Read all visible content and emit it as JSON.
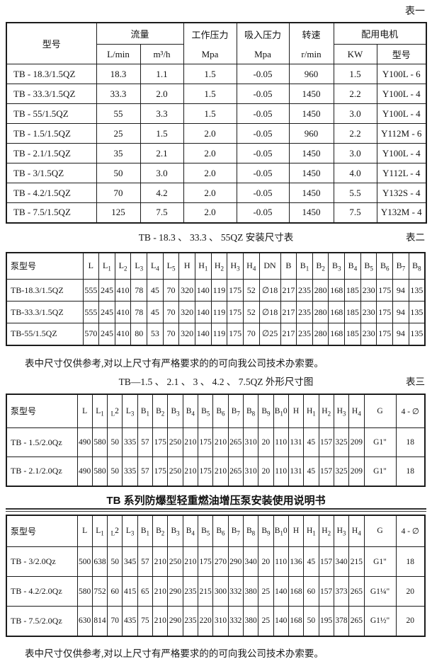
{
  "colors": {
    "ink": "#1c1c1c",
    "background": "#ffffff"
  },
  "page": {
    "label_table1": "表一",
    "label_table2": "表二",
    "label_table3": "表三",
    "caption_table2": "TB - 18.3 、 33.3 、 55QZ 安装尺寸表",
    "caption_table3": "TB—1.5 、 2.1 、 3 、 4.2 、 7.5QZ 外形尺寸图",
    "note_table2": "表中尺寸仅供参考,对以上尺寸有严格要求的的可向我公司技术办索要。",
    "manual_heading": "TB 系列防爆型轻重燃油增压泵安装使用说明书",
    "note_table4": "表中尺寸仅供参考,对以上尺寸有严格要求的的可向我公司技术办索要。"
  },
  "spec_table": {
    "header": {
      "model": "型号",
      "flow": "流量",
      "flow_lmin": "L/min",
      "flow_m3h": "m³/h",
      "work_pressure": "工作压力",
      "work_pressure_unit": "Mpa",
      "suction_pressure": "吸入压力",
      "suction_pressure_unit": "Mpa",
      "speed": "转速",
      "speed_unit": "r/min",
      "motor": "配用电机",
      "motor_kw": "KW",
      "motor_model": "型号"
    },
    "rows": [
      [
        "TB - 18.3/1.5QZ",
        "18.3",
        "1.1",
        "1.5",
        "-0.05",
        "960",
        "1.5",
        "Y100L - 6"
      ],
      [
        "TB - 33.3/1.5QZ",
        "33.3",
        "2.0",
        "1.5",
        "-0.05",
        "1450",
        "2.2",
        "Y100L - 4"
      ],
      [
        "TB - 55/1.5QZ",
        "55",
        "3.3",
        "1.5",
        "-0.05",
        "1450",
        "3.0",
        "Y100L - 4"
      ],
      [
        "TB - 1.5/1.5QZ",
        "25",
        "1.5",
        "2.0",
        "-0.05",
        "960",
        "2.2",
        "Y112M - 6"
      ],
      [
        "TB - 2.1/1.5QZ",
        "35",
        "2.1",
        "2.0",
        "-0.05",
        "1450",
        "3.0",
        "Y100L - 4"
      ],
      [
        "TB - 3/1.5QZ",
        "50",
        "3.0",
        "2.0",
        "-0.05",
        "1450",
        "4.0",
        "Y112L - 4"
      ],
      [
        "TB - 4.2/1.5QZ",
        "70",
        "4.2",
        "2.0",
        "-0.05",
        "1450",
        "5.5",
        "Y132S - 4"
      ],
      [
        "TB - 7.5/1.5QZ",
        "125",
        "7.5",
        "2.0",
        "-0.05",
        "1450",
        "7.5",
        "Y132M - 4"
      ]
    ]
  },
  "install_table": {
    "columns": [
      "泵型号",
      "L",
      "L_{1}",
      "L_{2}",
      "L_{3}",
      "L_{4}",
      "L_{5}",
      "H",
      "H_{1}",
      "H_{2}",
      "H_{3}",
      "H_{4}",
      "DN",
      "B",
      "B_{1}",
      "B_{2}",
      "B_{3}",
      "B_{4}",
      "B_{5}",
      "B_{6}",
      "B_{7}",
      "B_{8}"
    ],
    "rows": [
      [
        "TB-18.3/1.5QZ",
        "555",
        "245",
        "410",
        "78",
        "45",
        "70",
        "320",
        "140",
        "119",
        "175",
        "52",
        "∅18",
        "217",
        "235",
        "280",
        "168",
        "185",
        "230",
        "175",
        "94",
        "135"
      ],
      [
        "TB-33.3/1.5QZ",
        "555",
        "245",
        "410",
        "78",
        "45",
        "70",
        "320",
        "140",
        "119",
        "175",
        "52",
        "∅18",
        "217",
        "235",
        "280",
        "168",
        "185",
        "230",
        "175",
        "94",
        "135"
      ],
      [
        "TB-55/1.5QZ",
        "570",
        "245",
        "410",
        "80",
        "53",
        "70",
        "320",
        "140",
        "119",
        "175",
        "70",
        "∅25",
        "217",
        "235",
        "280",
        "168",
        "185",
        "230",
        "175",
        "94",
        "135"
      ]
    ]
  },
  "outline_table": {
    "columns": [
      "泵型号",
      "L",
      "L_{1}",
      "_{L}2",
      "L_{3}",
      "B_{1}",
      "B_{2}",
      "B_{3}",
      "B_{4}",
      "B_{5}",
      "B_{6}",
      "B_{7}",
      "B_{8}",
      "B_{9}",
      "B_{1}0",
      "H",
      "H_{1}",
      "H_{2}",
      "H_{3}",
      "H_{4}",
      "G",
      "4 - ∅"
    ],
    "rows": [
      [
        "TB - 1.5/2.0Qz",
        "490",
        "580",
        "50",
        "335",
        "57",
        "175",
        "250",
        "210",
        "175",
        "210",
        "265",
        "310",
        "20",
        "110",
        "131",
        "45",
        "157",
        "325",
        "209",
        "G1\"",
        "18"
      ],
      [
        "TB - 2.1/2.0Qz",
        "490",
        "580",
        "50",
        "335",
        "57",
        "175",
        "250",
        "210",
        "175",
        "210",
        "265",
        "310",
        "20",
        "110",
        "131",
        "45",
        "157",
        "325",
        "209",
        "G1\"",
        "18"
      ]
    ]
  },
  "manual_table": {
    "columns": [
      "泵型号",
      "L",
      "L_{1}",
      "_{L}2",
      "L_{3}",
      "B_{1}",
      "B_{2}",
      "B_{3}",
      "B_{4}",
      "B_{5}",
      "B_{6}",
      "B_{7}",
      "B_{8}",
      "B_{9}",
      "B_{1}0",
      "H",
      "H_{1}",
      "H_{2}",
      "H_{3}",
      "H_{4}",
      "G",
      "4 - ∅"
    ],
    "rows": [
      [
        "TB - 3/2.0Qz",
        "500",
        "638",
        "50",
        "345",
        "57",
        "210",
        "250",
        "210",
        "175",
        "270",
        "290",
        "340",
        "20",
        "110",
        "136",
        "45",
        "157",
        "340",
        "215",
        "G1\"",
        "18"
      ],
      [
        "TB - 4.2/2.0Qz",
        "580",
        "752",
        "60",
        "415",
        "65",
        "210",
        "290",
        "235",
        "215",
        "300",
        "332",
        "380",
        "25",
        "140",
        "168",
        "60",
        "157",
        "373",
        "265",
        "G1¼\"",
        "20"
      ],
      [
        "TB - 7.5/2.0Qz",
        "630",
        "814",
        "70",
        "435",
        "75",
        "210",
        "290",
        "235",
        "220",
        "310",
        "332",
        "380",
        "25",
        "140",
        "168",
        "50",
        "195",
        "378",
        "265",
        "G1½\"",
        "20"
      ]
    ]
  }
}
